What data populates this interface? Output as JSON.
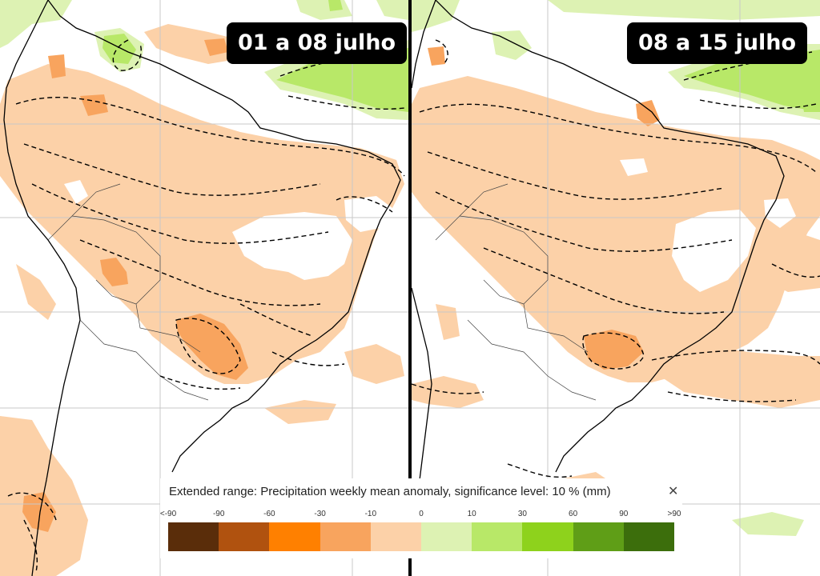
{
  "panels": {
    "left": {
      "period_label": "01 a 08 julho"
    },
    "right": {
      "period_label": "08 a 15 julho"
    }
  },
  "legend": {
    "title": "Extended range: Precipitation weekly mean anomaly, significance level: 10 % (mm)",
    "close_glyph": "✕",
    "tick_labels": [
      "<-90",
      "-90",
      "-60",
      "-30",
      "-10",
      "0",
      "10",
      "30",
      "60",
      "90",
      ">90"
    ],
    "colors": [
      "#5a2d0a",
      "#b0520f",
      "#ff8000",
      "#f8a45e",
      "#fcd1a8",
      "#ddf2b3",
      "#b8e868",
      "#8ed21c",
      "#5f9e17",
      "#3c6e0c"
    ]
  },
  "map_colors": {
    "dry_anomaly_light": "#fcd1a8",
    "dry_anomaly_medium": "#f8a45e",
    "wet_anomaly_light": "#ddf2b3",
    "wet_anomaly_medium": "#b8e868",
    "coastline": "#000000",
    "grid": "#c8c8c8"
  }
}
